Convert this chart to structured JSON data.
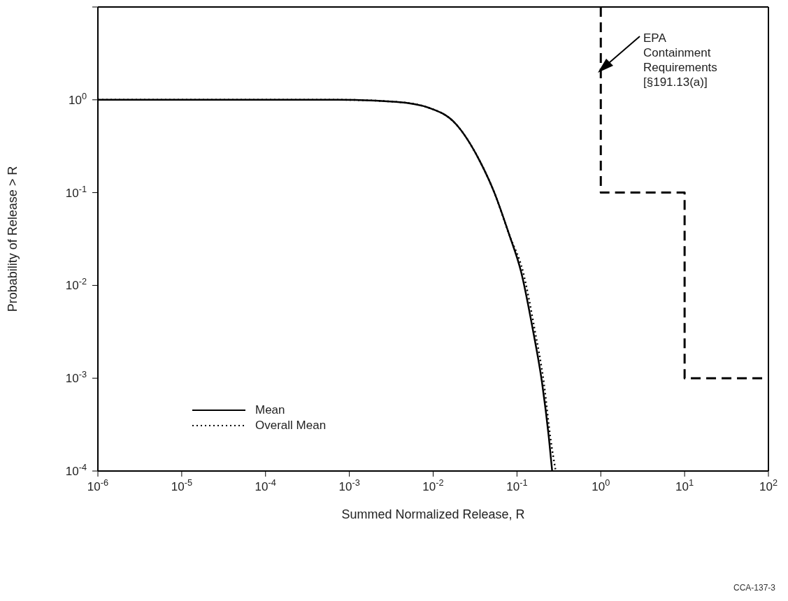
{
  "chart_data": {
    "type": "line",
    "xlabel": "Summed Normalized Release, R",
    "ylabel": "Probability of Release > R",
    "log": "xy",
    "xlim": [
      1e-06,
      100
    ],
    "ylim": [
      0.0001,
      10
    ],
    "xticks": [
      {
        "value": 1e-06,
        "label": "10$^{-6}$"
      },
      {
        "value": 1e-05,
        "label": "10$^{-5}$"
      },
      {
        "value": 0.0001,
        "label": "10$^{-4}$"
      },
      {
        "value": 0.001,
        "label": "10$^{-3}$"
      },
      {
        "value": 0.01,
        "label": "10$^{-2}$"
      },
      {
        "value": 0.1,
        "label": "10$^{-1}$"
      },
      {
        "value": 1,
        "label": "10$^{0}$"
      },
      {
        "value": 10,
        "label": "10$^{1}$"
      },
      {
        "value": 100,
        "label": "10$^{2}$"
      }
    ],
    "yticks": [
      {
        "value": 0.0001,
        "label": "10$^{-4}$"
      },
      {
        "value": 0.001,
        "label": "10$^{-3}$"
      },
      {
        "value": 0.01,
        "label": "10$^{-2}$"
      },
      {
        "value": 0.1,
        "label": "10$^{-1}$"
      },
      {
        "value": 1,
        "label": "10$^{0}$"
      },
      {
        "value": 10,
        "label": null
      }
    ],
    "grid": false,
    "legend": "bottom left",
    "marker": "none",
    "series": [
      {
        "name": "Mean",
        "color": "#000000",
        "line_style": "solid",
        "x": [
          1e-06,
          0.0001,
          0.00072,
          0.0036,
          0.0089,
          0.0186,
          0.0359,
          0.0537,
          0.081,
          0.112,
          0.155,
          0.2,
          0.24,
          0.263
        ],
        "values": [
          1,
          1,
          1,
          0.95,
          0.82,
          0.55,
          0.22,
          0.1,
          0.035,
          0.014,
          0.0033,
          0.00087,
          0.00023,
          0.0001
        ]
      },
      {
        "name": "Overall Mean",
        "color": "#000000",
        "line_style": "dotted",
        "x": [
          1e-06,
          0.0001,
          0.00072,
          0.0036,
          0.0089,
          0.0186,
          0.0359,
          0.0537,
          0.081,
          0.118,
          0.163,
          0.21,
          0.25,
          0.29
        ],
        "values": [
          1,
          1,
          1,
          0.95,
          0.82,
          0.55,
          0.22,
          0.1,
          0.035,
          0.014,
          0.0033,
          0.00087,
          0.00023,
          0.0001
        ]
      },
      {
        "color": "#000000",
        "line_style": "dashed",
        "x": [
          1,
          1,
          10,
          10,
          100
        ],
        "values": [
          10,
          0.1,
          0.1,
          0.001,
          0.001
        ]
      }
    ],
    "annotations": [
      "EPA Containment Requirements [§191.13(a)]",
      "CCA-137-3"
    ]
  }
}
